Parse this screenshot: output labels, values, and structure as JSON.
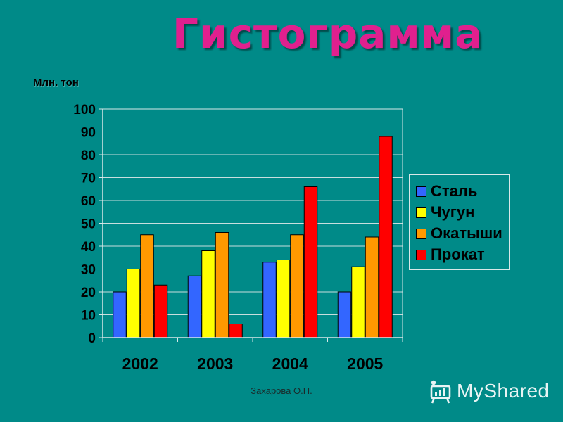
{
  "slide": {
    "title": "Гистограмма",
    "unit_label": "Млн. тон",
    "footer": "Захарова О.П.",
    "watermark": "MyShared",
    "watermark_icon": "presentation-board-icon"
  },
  "chart_data": {
    "type": "bar",
    "categories": [
      "2002",
      "2003",
      "2004",
      "2005"
    ],
    "series": [
      {
        "name": "Сталь",
        "color": "#3366ff",
        "values": [
          20,
          27,
          33,
          20
        ]
      },
      {
        "name": "Чугун",
        "color": "#ffff00",
        "values": [
          30,
          38,
          34,
          31
        ]
      },
      {
        "name": "Окатыши",
        "color": "#ff9900",
        "values": [
          45,
          46,
          45,
          44
        ]
      },
      {
        "name": "Прокат",
        "color": "#ff0000",
        "values": [
          23,
          6,
          66,
          88
        ]
      }
    ],
    "ylabel": "Млн. тон",
    "ylim": [
      0,
      100
    ],
    "yticks": [
      "0",
      "10",
      "20",
      "30",
      "40",
      "50",
      "60",
      "70",
      "80",
      "90",
      "100"
    ],
    "grid": true,
    "legend": "right"
  }
}
